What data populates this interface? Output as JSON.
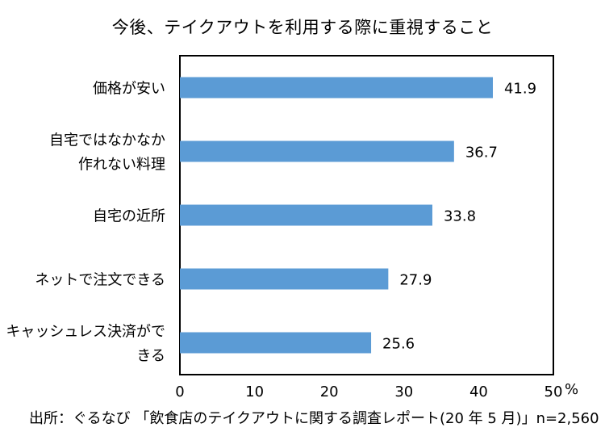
{
  "chart_data": {
    "type": "bar",
    "orientation": "horizontal",
    "title": "今後、テイクアウトを利用する際に重視すること",
    "categories": [
      [
        "価格が安い"
      ],
      [
        "自宅ではなかなか",
        "作れない料理"
      ],
      [
        "自宅の近所"
      ],
      [
        "ネットで注文できる"
      ],
      [
        "キャッシュレス決済がで",
        "きる"
      ]
    ],
    "values": [
      41.9,
      36.7,
      33.8,
      27.9,
      25.6
    ],
    "value_labels": [
      "41.9",
      "36.7",
      "33.8",
      "27.9",
      "25.6"
    ],
    "xlim": [
      0,
      50
    ],
    "xticks": [
      "0",
      "10",
      "20",
      "30",
      "40",
      "50"
    ],
    "unit": "%",
    "bar_color": "#5b9bd5",
    "grid": false,
    "legend": "none"
  },
  "source": "出所：ぐるなび 「飲食店のテイクアウトに関する調査レポート(20 年 5 月)」n=2,560"
}
